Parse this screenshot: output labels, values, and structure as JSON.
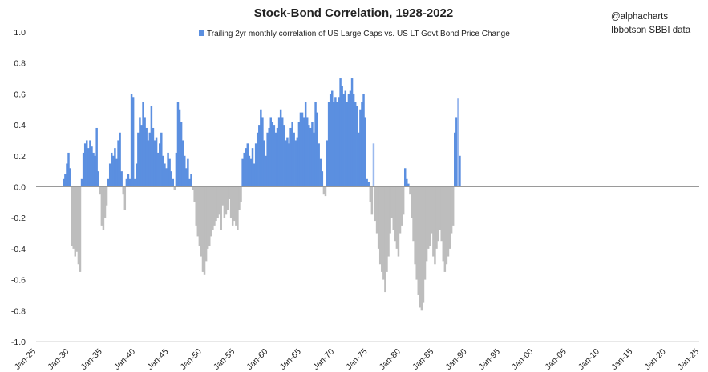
{
  "chart_data": {
    "type": "bar",
    "title": "Stock-Bond Correlation, 1928-2022",
    "source_handle": "@alphacharts",
    "source_data": "Ibbotson SBBI data",
    "legend": [
      "Trailing 2yr monthly correlation of US Large Caps vs. US LT Govt Bond Price Change"
    ],
    "xlabel": "",
    "ylabel": "",
    "ylim": [
      -1.0,
      1.0
    ],
    "xlim_years": [
      1925,
      2025
    ],
    "y_ticks": [
      "1.0",
      "0.8",
      "0.6",
      "0.4",
      "0.2",
      "0.0",
      "-0.2",
      "-0.4",
      "-0.6",
      "-0.8",
      "-1.0"
    ],
    "y_tick_values": [
      1.0,
      0.8,
      0.6,
      0.4,
      0.2,
      0.0,
      -0.2,
      -0.4,
      -0.6,
      -0.8,
      -1.0
    ],
    "x_ticks": [
      "Jan-25",
      "Jan-30",
      "Jan-35",
      "Jan-40",
      "Jan-45",
      "Jan-50",
      "Jan-55",
      "Jan-60",
      "Jan-65",
      "Jan-70",
      "Jan-75",
      "Jan-80",
      "Jan-85",
      "Jan-90",
      "Jan-95",
      "Jan-00",
      "Jan-05",
      "Jan-10",
      "Jan-15",
      "Jan-20",
      "Jan-25"
    ],
    "x_tick_years": [
      1925,
      1930,
      1935,
      1940,
      1945,
      1950,
      1955,
      1960,
      1965,
      1970,
      1975,
      1980,
      1985,
      1990,
      1995,
      2000,
      2005,
      2010,
      2015,
      2020,
      2025
    ],
    "colors": {
      "positive": "#5b8fe0",
      "negative": "#bdbdbd",
      "positive_light": "#9bb9ee"
    },
    "series": [
      {
        "name": "Trailing 2yr monthly correlation",
        "sampling": "quarterly (4 points per year starting 1929.0)",
        "x_start": 1929.0,
        "x_step": 0.25,
        "values": [
          0.05,
          0.08,
          0.15,
          0.22,
          0.12,
          -0.38,
          -0.4,
          -0.45,
          -0.42,
          -0.5,
          -0.55,
          0.05,
          0.22,
          0.28,
          0.3,
          0.25,
          0.3,
          0.26,
          0.22,
          0.2,
          0.38,
          0.1,
          -0.05,
          -0.25,
          -0.28,
          -0.2,
          -0.12,
          0.05,
          0.15,
          0.22,
          0.2,
          0.25,
          0.18,
          0.3,
          0.35,
          0.1,
          -0.05,
          -0.15,
          0.05,
          0.08,
          0.05,
          0.6,
          0.58,
          0.05,
          0.15,
          0.35,
          0.45,
          0.4,
          0.55,
          0.45,
          0.38,
          0.3,
          0.35,
          0.52,
          0.38,
          0.3,
          0.32,
          0.22,
          0.28,
          0.35,
          0.2,
          0.15,
          0.12,
          0.22,
          0.18,
          0.1,
          0.05,
          -0.02,
          0.22,
          0.55,
          0.5,
          0.42,
          0.3,
          0.2,
          0.12,
          0.18,
          0.05,
          0.08,
          -0.02,
          -0.1,
          -0.25,
          -0.32,
          -0.38,
          -0.45,
          -0.55,
          -0.57,
          -0.48,
          -0.4,
          -0.38,
          -0.32,
          -0.28,
          -0.25,
          -0.22,
          -0.2,
          -0.18,
          -0.28,
          -0.12,
          -0.2,
          -0.18,
          -0.15,
          -0.08,
          -0.2,
          -0.25,
          -0.22,
          -0.25,
          -0.28,
          -0.15,
          -0.1,
          0.18,
          0.22,
          0.25,
          0.28,
          0.2,
          0.18,
          0.25,
          0.15,
          0.28,
          0.35,
          0.4,
          0.5,
          0.45,
          0.3,
          0.2,
          0.35,
          0.38,
          0.45,
          0.42,
          0.4,
          0.35,
          0.38,
          0.45,
          0.5,
          0.45,
          0.4,
          0.3,
          0.32,
          0.28,
          0.38,
          0.42,
          0.35,
          0.3,
          0.32,
          0.42,
          0.48,
          0.48,
          0.45,
          0.55,
          0.45,
          0.4,
          0.38,
          0.42,
          0.35,
          0.55,
          0.48,
          0.28,
          0.18,
          0.1,
          -0.05,
          -0.06,
          0.3,
          0.55,
          0.6,
          0.62,
          0.55,
          0.58,
          0.55,
          0.58,
          0.7,
          0.65,
          0.6,
          0.62,
          0.55,
          0.6,
          0.62,
          0.7,
          0.6,
          0.55,
          0.52,
          0.35,
          0.5,
          0.55,
          0.6,
          0.45,
          0.05,
          0.03,
          -0.1,
          -0.18,
          0.28,
          -0.22,
          -0.3,
          -0.4,
          -0.5,
          -0.55,
          -0.6,
          -0.68,
          -0.55,
          -0.45,
          -0.3,
          -0.2,
          -0.28,
          -0.35,
          -0.4,
          -0.45,
          -0.3,
          -0.25,
          -0.18,
          0.12,
          0.05,
          0.02,
          -0.05,
          -0.2,
          -0.35,
          -0.5,
          -0.6,
          -0.7,
          -0.78,
          -0.8,
          -0.75,
          -0.6,
          -0.48,
          -0.4,
          -0.38,
          -0.3,
          -0.45,
          -0.5,
          -0.4,
          -0.35,
          -0.28,
          -0.35,
          -0.48,
          -0.55,
          -0.5,
          -0.45,
          -0.4,
          -0.3,
          -0.25,
          0.35,
          0.45,
          0.57,
          0.2
        ]
      }
    ]
  }
}
